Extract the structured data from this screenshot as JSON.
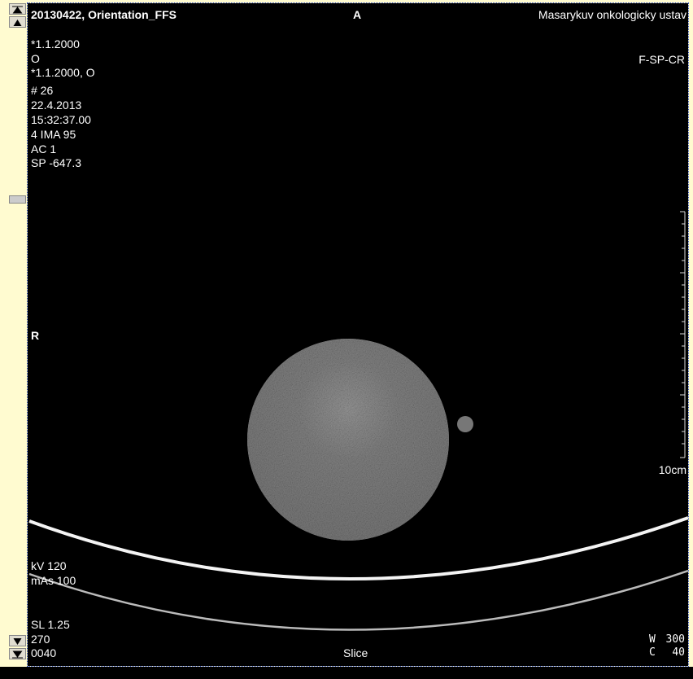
{
  "header": {
    "patient": "20130422, Orientation_FFS",
    "orientation_top": "A",
    "institution": "Masarykuv onkologicky ustav"
  },
  "top_left": [
    "*1.1.2000",
    "O",
    "*1.1.2000, O",
    "# 26",
    "22.4.2013",
    "15:32:37.00",
    "4 IMA 95",
    "AC 1",
    "SP -647.3"
  ],
  "top_right": "F-SP-CR",
  "orientation_left": "R",
  "scale_label": "10cm",
  "bottom_left": [
    "kV 120",
    "mAs 100",
    "SL 1.25",
    "270",
    "0040"
  ],
  "bottom_center": "Slice",
  "window": {
    "w_label": "W",
    "w_value": "300",
    "c_label": "C",
    "c_value": "40"
  }
}
